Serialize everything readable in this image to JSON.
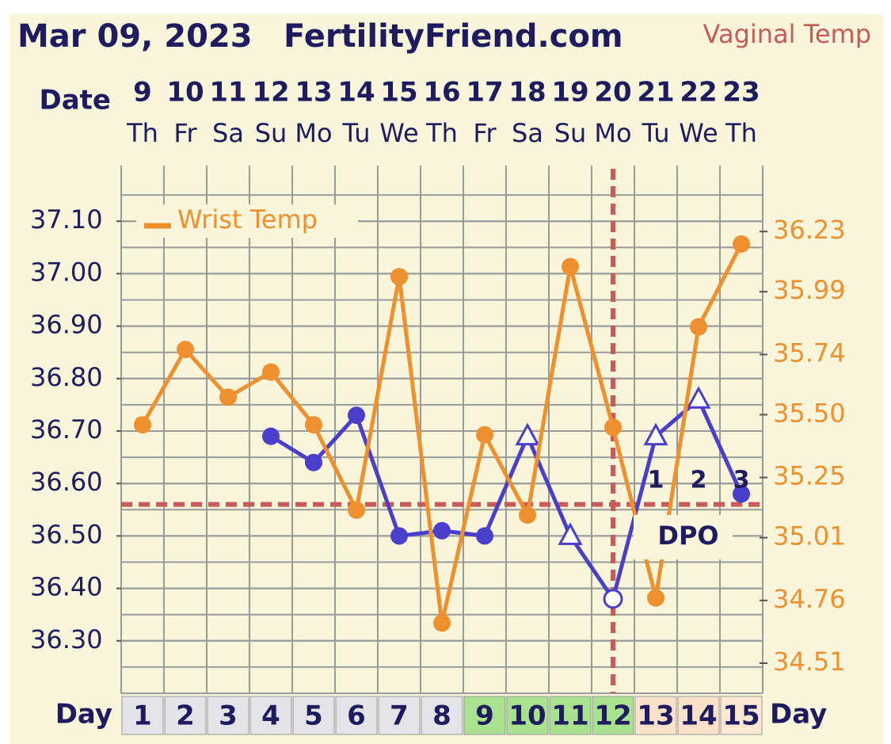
{
  "chart_data": {
    "type": "line",
    "title": "Mar 09, 2023",
    "subtitle": "FertilityFriend.com",
    "date_label": "Date",
    "day_label": "Day",
    "categories": [
      "9",
      "10",
      "11",
      "12",
      "13",
      "14",
      "15",
      "16",
      "17",
      "18",
      "19",
      "20",
      "21",
      "22",
      "23"
    ],
    "weekdays": [
      "Th",
      "Fr",
      "Sa",
      "Su",
      "Mo",
      "Tu",
      "We",
      "Th",
      "Fr",
      "Sa",
      "Su",
      "Mo",
      "Tu",
      "We",
      "Th"
    ],
    "days": [
      1,
      2,
      3,
      4,
      5,
      6,
      7,
      8,
      9,
      10,
      11,
      12,
      13,
      14,
      15
    ],
    "day_colors": [
      "#e4e4e8",
      "#e4e4e8",
      "#e4e4e8",
      "#e4e4e8",
      "#e4e4e8",
      "#e4e4e8",
      "#e4e4e8",
      "#e4e4e8",
      "#a9e28e",
      "#a9e28e",
      "#a9e28e",
      "#a9e28e",
      "#fbe1c9",
      "#fbe1c9",
      "#fbe7d2"
    ],
    "series": [
      {
        "name": "Vaginal Temp",
        "color": "#4a3fcb",
        "values": [
          null,
          null,
          null,
          36.69,
          36.64,
          36.73,
          36.5,
          36.51,
          36.5,
          36.69,
          36.5,
          36.38,
          36.69,
          36.76,
          36.58
        ],
        "markers": [
          null,
          null,
          null,
          "circle",
          "circle",
          "circle",
          "circle",
          "circle",
          "circle",
          "triangle",
          "triangle",
          "open-circle",
          "triangle",
          "triangle",
          "circle"
        ]
      },
      {
        "name": "Wrist Temp",
        "color": "#ef902e",
        "axis": "y2",
        "marker": "circle",
        "values": [
          35.46,
          35.76,
          35.57,
          35.67,
          35.46,
          35.12,
          36.05,
          34.67,
          35.42,
          35.1,
          36.09,
          35.45,
          34.77,
          35.85,
          36.18
        ]
      }
    ],
    "ylim": [
      36.2,
      37.2
    ],
    "yticks": [
      {
        "value": 36.3,
        "label": "36.30"
      },
      {
        "value": 36.4,
        "label": "36.40"
      },
      {
        "value": 36.5,
        "label": "36.50"
      },
      {
        "value": 36.6,
        "label": "36.60"
      },
      {
        "value": 36.7,
        "label": "36.70"
      },
      {
        "value": 36.8,
        "label": "36.80"
      },
      {
        "value": 36.9,
        "label": "36.90"
      },
      {
        "value": 37.0,
        "label": "37.00"
      },
      {
        "value": 37.1,
        "label": "37.10"
      }
    ],
    "y2lim": [
      34.39,
      36.48
    ],
    "y2ticks": [
      34.51,
      34.76,
      35.01,
      35.25,
      {
        "value": 35.5,
        "label": "35.50"
      },
      35.74,
      35.99,
      36.23
    ],
    "coverline": 36.56,
    "ovulation_day": 12,
    "dpo": [
      null,
      null,
      null,
      null,
      null,
      null,
      null,
      null,
      null,
      null,
      null,
      null,
      1,
      2,
      3
    ],
    "dpo_label": "DPO",
    "grid": true
  }
}
